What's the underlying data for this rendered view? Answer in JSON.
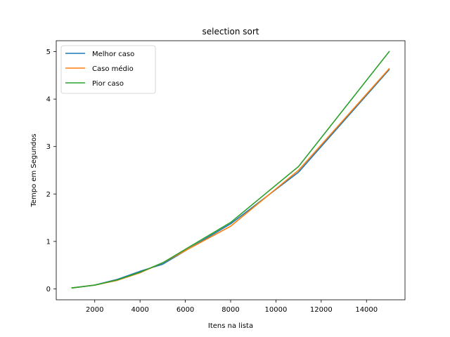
{
  "chart_data": {
    "type": "line",
    "title": "selection sort",
    "xlabel": "Itens na lista",
    "ylabel": "Tempo em Segundos",
    "xlim": [
      300,
      15700
    ],
    "ylim": [
      -0.23,
      5.23
    ],
    "xticks": [
      2000,
      4000,
      6000,
      8000,
      10000,
      12000,
      14000
    ],
    "yticks": [
      0,
      1,
      2,
      3,
      4,
      5
    ],
    "grid": false,
    "legend_position": "top-left",
    "series": [
      {
        "name": "Melhor caso",
        "color": "#1f77b4",
        "x": [
          1000,
          2000,
          3000,
          4000,
          5000,
          8000,
          11000,
          15000
        ],
        "y": [
          0.02,
          0.08,
          0.2,
          0.37,
          0.52,
          1.37,
          2.46,
          4.62
        ]
      },
      {
        "name": "Caso médio",
        "color": "#ff7f0e",
        "x": [
          1000,
          2000,
          3000,
          4000,
          5000,
          8000,
          11000,
          15000
        ],
        "y": [
          0.02,
          0.08,
          0.18,
          0.34,
          0.55,
          1.32,
          2.5,
          4.64
        ]
      },
      {
        "name": "Pior caso",
        "color": "#2ca02c",
        "x": [
          1000,
          2000,
          3000,
          4000,
          5000,
          8000,
          11000,
          15000
        ],
        "y": [
          0.02,
          0.08,
          0.19,
          0.35,
          0.55,
          1.4,
          2.58,
          5.0
        ]
      }
    ]
  }
}
